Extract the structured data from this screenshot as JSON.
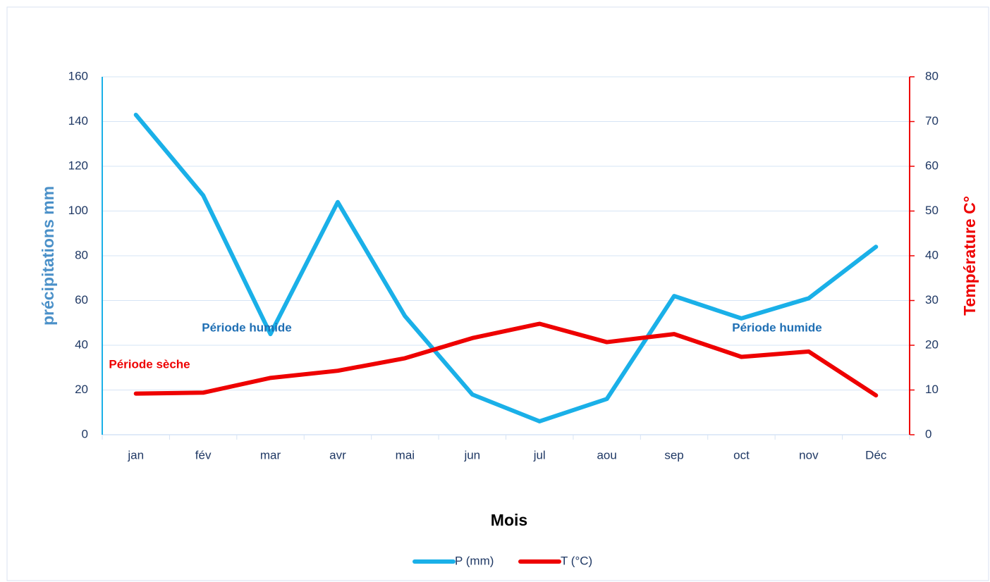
{
  "chart_data": {
    "type": "line",
    "categories": [
      "jan",
      "fév",
      "mar",
      "avr",
      "mai",
      "jun",
      "jul",
      "aou",
      "sep",
      "oct",
      "nov",
      "Déc"
    ],
    "series": [
      {
        "name": "P (mm)",
        "color": "#1ab0e8",
        "values": [
          143,
          107,
          45,
          104,
          53,
          18,
          6,
          16,
          62,
          52,
          61,
          84
        ]
      },
      {
        "name": "T (°C)",
        "color": "#ee0000",
        "axis": "y2",
        "values": [
          9.2,
          9.4,
          12.7,
          14.3,
          17.1,
          21.6,
          24.8,
          20.7,
          22.5,
          17.4,
          18.6,
          8.8
        ]
      }
    ],
    "ylim": [
      0,
      160
    ],
    "yticks": [
      0,
      20,
      40,
      60,
      80,
      100,
      120,
      140,
      160
    ],
    "y2lim": [
      0,
      80
    ],
    "y2ticks": [
      0,
      10,
      20,
      30,
      40,
      50,
      60,
      70,
      80
    ],
    "ylabel": "précipitations  mm",
    "y2label": "Température  C°",
    "xlabel": "Mois",
    "annotations": [
      "Période humide",
      "Période sèche",
      "Période humide"
    ],
    "grid": true,
    "legend": "bottom"
  }
}
